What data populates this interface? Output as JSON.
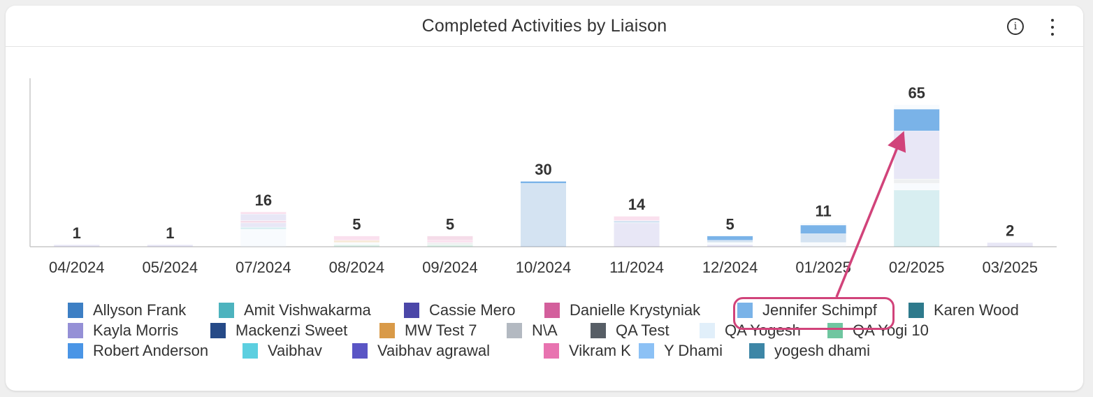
{
  "card": {
    "title": "Completed Activities by Liaison",
    "info_icon": "info-icon",
    "more_icon": "more-vertical-icon"
  },
  "chart_data": {
    "type": "bar",
    "stacked": true,
    "categories": [
      "04/2024",
      "05/2024",
      "07/2024",
      "08/2024",
      "09/2024",
      "10/2024",
      "11/2024",
      "12/2024",
      "01/2025",
      "02/2025",
      "03/2025"
    ],
    "totals": [
      1,
      1,
      16,
      5,
      5,
      30,
      14,
      5,
      11,
      65,
      2
    ],
    "ylim": [
      0,
      77
    ],
    "grid": false,
    "legend_position": "bottom",
    "series": [
      {
        "name": "Allyson Frank",
        "color": "#3d7fc4"
      },
      {
        "name": "Amit Vishwakarma",
        "color": "#4db3be"
      },
      {
        "name": "Cassie Mero",
        "color": "#4b47a8"
      },
      {
        "name": "Danielle Krystyniak",
        "color": "#d35f9c"
      },
      {
        "name": "Jennifer Schimpf",
        "color": "#7ab3e8"
      },
      {
        "name": "Karen Wood",
        "color": "#2e7a8c"
      },
      {
        "name": "Kayla Morris",
        "color": "#9590d6"
      },
      {
        "name": "Mackenzi Sweet",
        "color": "#264a87"
      },
      {
        "name": "MW Test 7",
        "color": "#d99a48"
      },
      {
        "name": "N\\A",
        "color": "#b3b9c1"
      },
      {
        "name": "QA Test",
        "color": "#575e66"
      },
      {
        "name": "QA Yogesh",
        "color": "#e1effa"
      },
      {
        "name": "QA Yogi 10",
        "color": "#6fc6a0"
      },
      {
        "name": "Robert Anderson",
        "color": "#4a95e6"
      },
      {
        "name": "Vaibhav",
        "color": "#5ccfe0"
      },
      {
        "name": "Vaibhav agrawal",
        "color": "#5a55c5"
      },
      {
        "name": "Vikram K",
        "color": "#e873b0"
      },
      {
        "name": "Y Dhami",
        "color": "#8cc1f5"
      },
      {
        "name": "yogesh dhami",
        "color": "#3d86a6"
      }
    ],
    "highlighted_series": "Jennifer Schimpf",
    "segments": [
      [
        {
          "s": "Kayla Morris",
          "v": 1
        }
      ],
      [
        {
          "s": "Kayla Morris",
          "v": 1
        }
      ],
      [
        {
          "s": "QA Yogesh",
          "v": 8
        },
        {
          "s": "Amit Vishwakarma",
          "v": 1
        },
        {
          "s": "Kayla Morris",
          "v": 2
        },
        {
          "s": "Danielle Krystyniak",
          "v": 1
        },
        {
          "s": "Kayla Morris",
          "v": 3
        },
        {
          "s": "Vikram K",
          "v": 1
        }
      ],
      [
        {
          "s": "QA Yogi 10",
          "v": 1
        },
        {
          "s": "QA Yogesh",
          "v": 1
        },
        {
          "s": "MW Test 7",
          "v": 1
        },
        {
          "s": "Vikram K",
          "v": 2
        }
      ],
      [
        {
          "s": "QA Yogi 10",
          "v": 1
        },
        {
          "s": "N\\A",
          "v": 1
        },
        {
          "s": "Vikram K",
          "v": 1
        },
        {
          "s": "Danielle Krystyniak",
          "v": 2
        }
      ],
      [
        {
          "s": "Allyson Frank",
          "v": 29
        },
        {
          "s": "Jennifer Schimpf",
          "v": 1
        }
      ],
      [
        {
          "s": "Kayla Morris",
          "v": 11
        },
        {
          "s": "Allyson Frank",
          "v": 1
        },
        {
          "s": "Vikram K",
          "v": 2
        }
      ],
      [
        {
          "s": "Kayla Morris",
          "v": 1
        },
        {
          "s": "QA Yogesh",
          "v": 1
        },
        {
          "s": "Allyson Frank",
          "v": 1
        },
        {
          "s": "Jennifer Schimpf",
          "v": 2
        }
      ],
      [
        {
          "s": "QA Yogesh",
          "v": 2
        },
        {
          "s": "Allyson Frank",
          "v": 4
        },
        {
          "s": "Jennifer Schimpf",
          "v": 4
        },
        {
          "s": "QA Yogesh",
          "v": 1
        }
      ],
      [
        {
          "s": "Amit Vishwakarma",
          "v": 26
        },
        {
          "s": "QA Yogesh",
          "v": 3
        },
        {
          "s": "N\\A",
          "v": 2
        },
        {
          "s": "Kayla Morris",
          "v": 22
        },
        {
          "s": "Jennifer Schimpf",
          "v": 10
        },
        {
          "s": "QA Yogesh",
          "v": 2
        }
      ],
      [
        {
          "s": "Kayla Morris",
          "v": 2
        }
      ]
    ]
  }
}
